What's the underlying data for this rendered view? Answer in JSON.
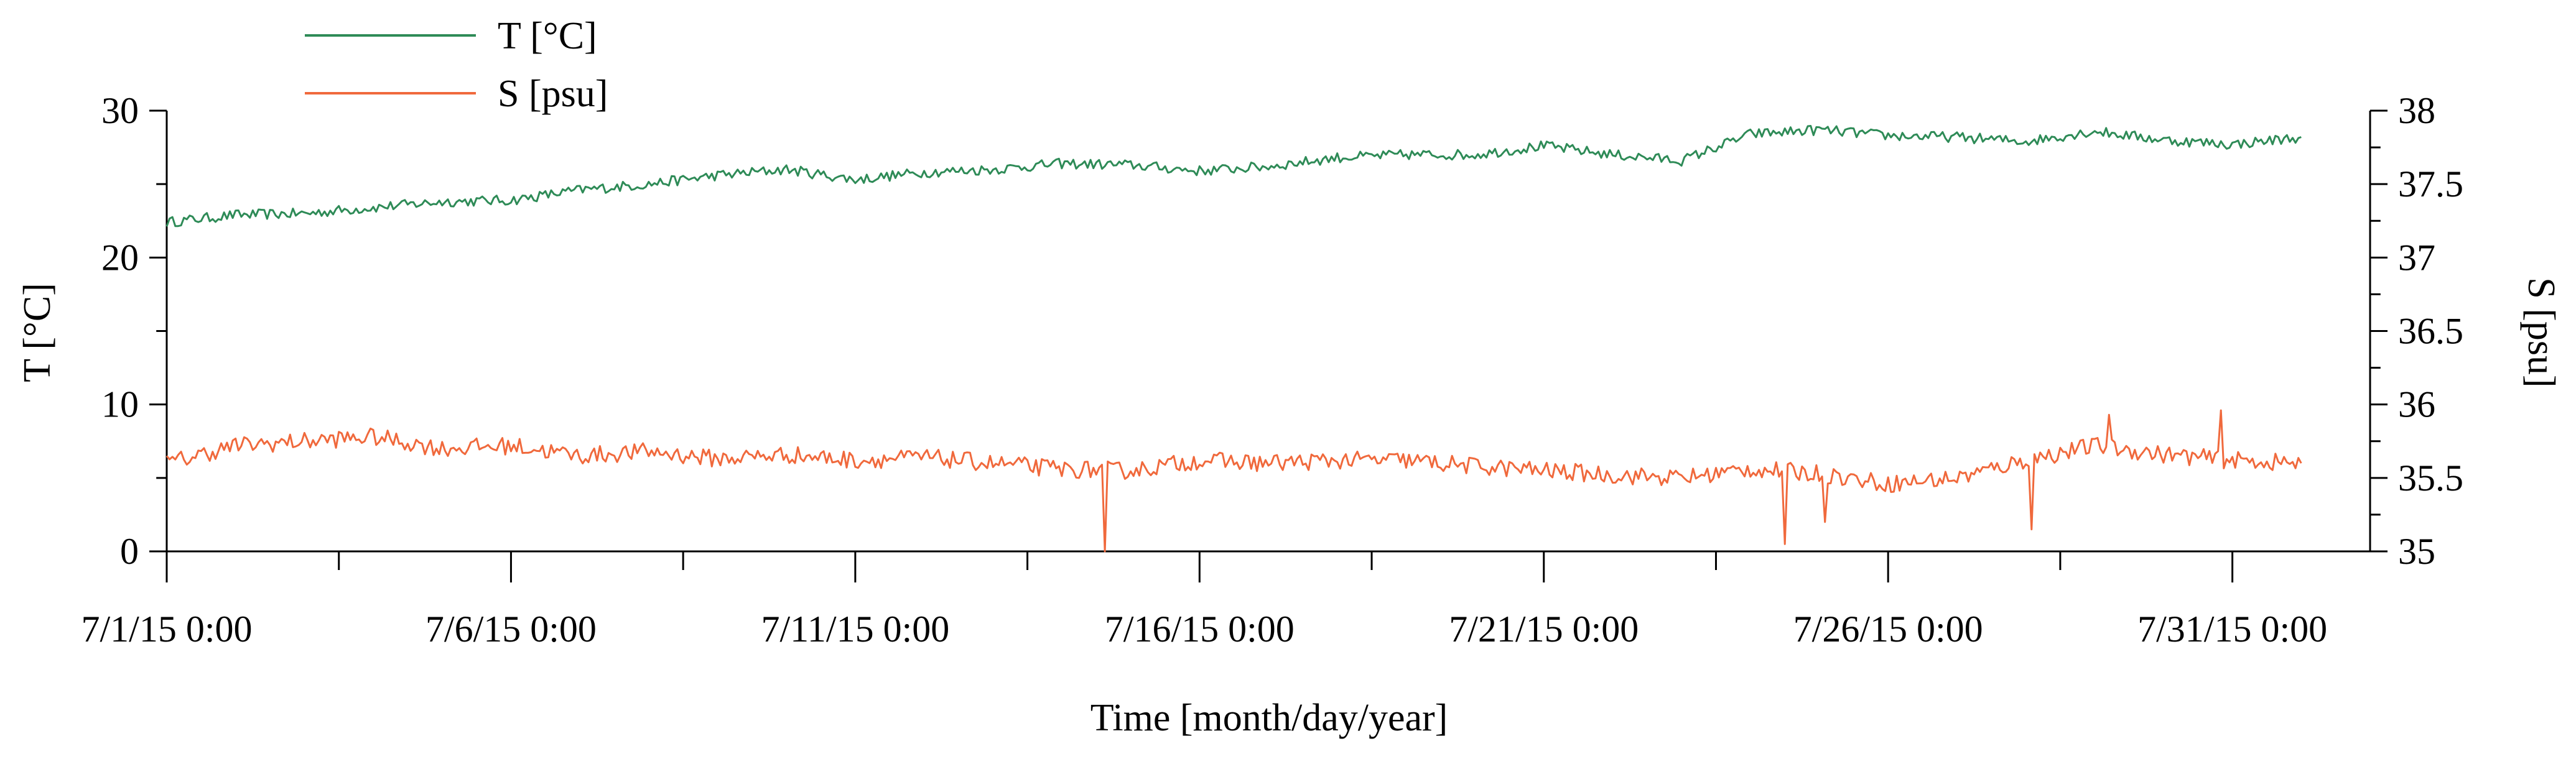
{
  "chart_data": {
    "type": "line",
    "x_axis": {
      "label": "Time [month/day/year]",
      "range": [
        "2015-07-01 00:00",
        "2015-08-02 00:00"
      ],
      "tick_labels": [
        "7/1/15 0:00",
        "7/6/15 0:00",
        "7/11/15 0:00",
        "7/16/15 0:00",
        "7/21/15 0:00",
        "7/26/15 0:00",
        "7/31/15 0:00"
      ],
      "major_tick_dates": [
        "2015-07-01",
        "2015-07-06",
        "2015-07-11",
        "2015-07-16",
        "2015-07-21",
        "2015-07-26",
        "2015-07-31"
      ]
    },
    "y_left": {
      "label": "T [°C]",
      "range": [
        0,
        30
      ],
      "tick_labels": [
        "0",
        "10",
        "20",
        "30"
      ]
    },
    "y_right": {
      "label": "S [psu]",
      "range": [
        35,
        38
      ],
      "tick_labels": [
        "35",
        "35.5",
        "36",
        "36.5",
        "37",
        "37.5",
        "38"
      ]
    },
    "grid": false,
    "legend_position": "top-left, above plot",
    "series": [
      {
        "name": "T [°C]",
        "axis": "left",
        "color": "#2e8b57",
        "x": [
          "2015-07-01",
          "2015-07-02",
          "2015-07-03",
          "2015-07-04",
          "2015-07-05",
          "2015-07-06",
          "2015-07-07",
          "2015-07-08",
          "2015-07-09",
          "2015-07-10",
          "2015-07-11",
          "2015-07-12",
          "2015-07-13",
          "2015-07-14",
          "2015-07-15",
          "2015-07-16",
          "2015-07-17",
          "2015-07-18",
          "2015-07-19",
          "2015-07-20",
          "2015-07-21",
          "2015-07-22",
          "2015-07-23",
          "2015-07-24",
          "2015-07-25",
          "2015-07-26",
          "2015-07-27",
          "2015-07-28",
          "2015-07-29",
          "2015-07-30",
          "2015-07-31",
          "2015-08-01"
        ],
        "values": [
          22.4,
          22.9,
          23.0,
          23.4,
          23.8,
          23.9,
          24.6,
          25.0,
          25.6,
          26.0,
          25.3,
          25.8,
          26.0,
          26.4,
          26.3,
          25.9,
          26.2,
          26.8,
          27.0,
          27.0,
          27.6,
          27.0,
          26.6,
          28.4,
          28.7,
          28.3,
          28.2,
          27.9,
          28.6,
          28.0,
          27.7,
          28.2
        ]
      },
      {
        "name": "S [psu]",
        "axis": "right",
        "color": "#f0693c",
        "x": [
          "2015-07-01",
          "2015-07-02",
          "2015-07-03",
          "2015-07-04",
          "2015-07-05",
          "2015-07-06",
          "2015-07-07",
          "2015-07-08",
          "2015-07-09",
          "2015-07-10",
          "2015-07-11",
          "2015-07-12",
          "2015-07-13",
          "2015-07-14",
          "2015-07-15",
          "2015-07-16",
          "2015-07-17",
          "2015-07-18",
          "2015-07-19",
          "2015-07-20",
          "2015-07-21",
          "2015-07-22",
          "2015-07-23",
          "2015-07-24",
          "2015-07-25",
          "2015-07-26",
          "2015-07-27",
          "2015-07-28",
          "2015-07-29",
          "2015-07-30",
          "2015-07-31",
          "2015-08-01"
        ],
        "values": [
          35.6,
          35.72,
          35.75,
          35.78,
          35.7,
          35.72,
          35.65,
          35.68,
          35.63,
          35.66,
          35.62,
          35.64,
          35.6,
          35.56,
          35.55,
          35.62,
          35.6,
          35.62,
          35.62,
          35.58,
          35.55,
          35.52,
          35.5,
          35.56,
          35.53,
          35.46,
          35.5,
          35.62,
          35.72,
          35.66,
          35.62,
          35.6
        ]
      }
    ],
    "salinity_dips": [
      {
        "x": "2015-07-14 15:00",
        "value": 35.0
      },
      {
        "x": "2015-07-24 12:00",
        "value": 35.05
      },
      {
        "x": "2015-07-28 02:00",
        "value": 35.15
      },
      {
        "x": "2015-07-25 02:00",
        "value": 35.2
      }
    ],
    "salinity_spikes": [
      {
        "x": "2015-07-29 05:00",
        "value": 35.93
      },
      {
        "x": "2015-07-30 20:00",
        "value": 35.96
      }
    ]
  }
}
